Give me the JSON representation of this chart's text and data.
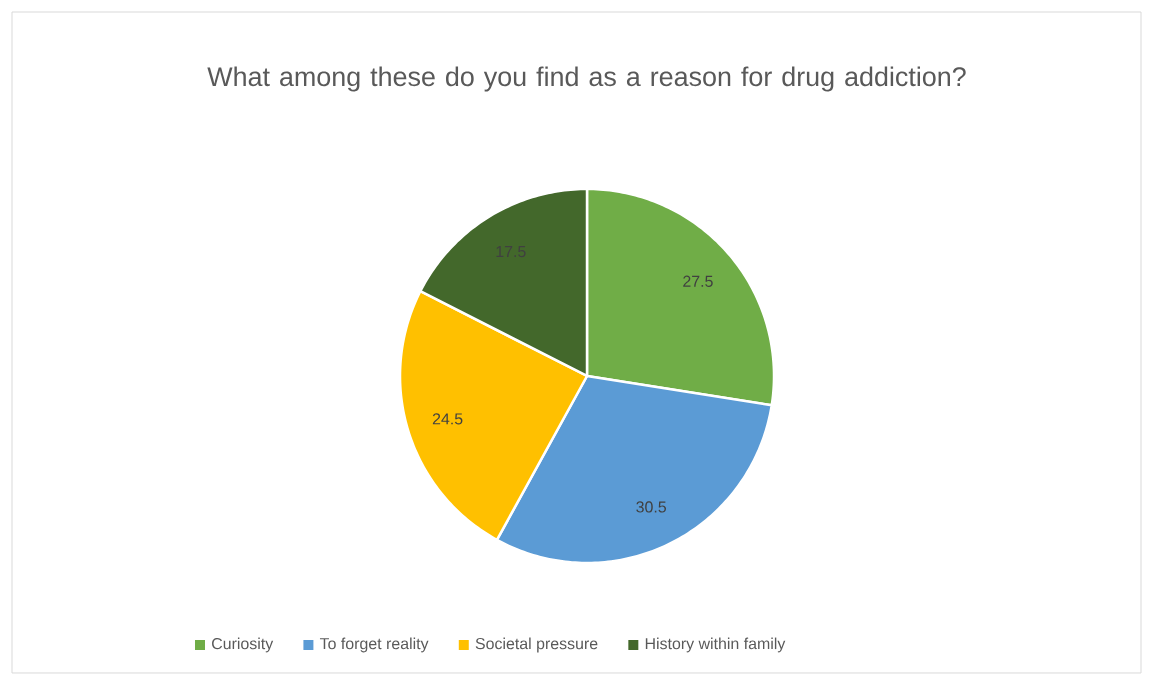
{
  "chart_data": {
    "type": "pie",
    "title": "What among these do you find as a reason for drug addiction?",
    "categories": [
      "Curiosity",
      "To forget reality",
      "Societal pressure",
      "History within family"
    ],
    "values": [
      27.5,
      30.5,
      24.5,
      17.5
    ],
    "colors": [
      "#70ad47",
      "#5b9bd5",
      "#ffc000",
      "#43682b"
    ],
    "data_labels": true,
    "legend": "bottom"
  }
}
